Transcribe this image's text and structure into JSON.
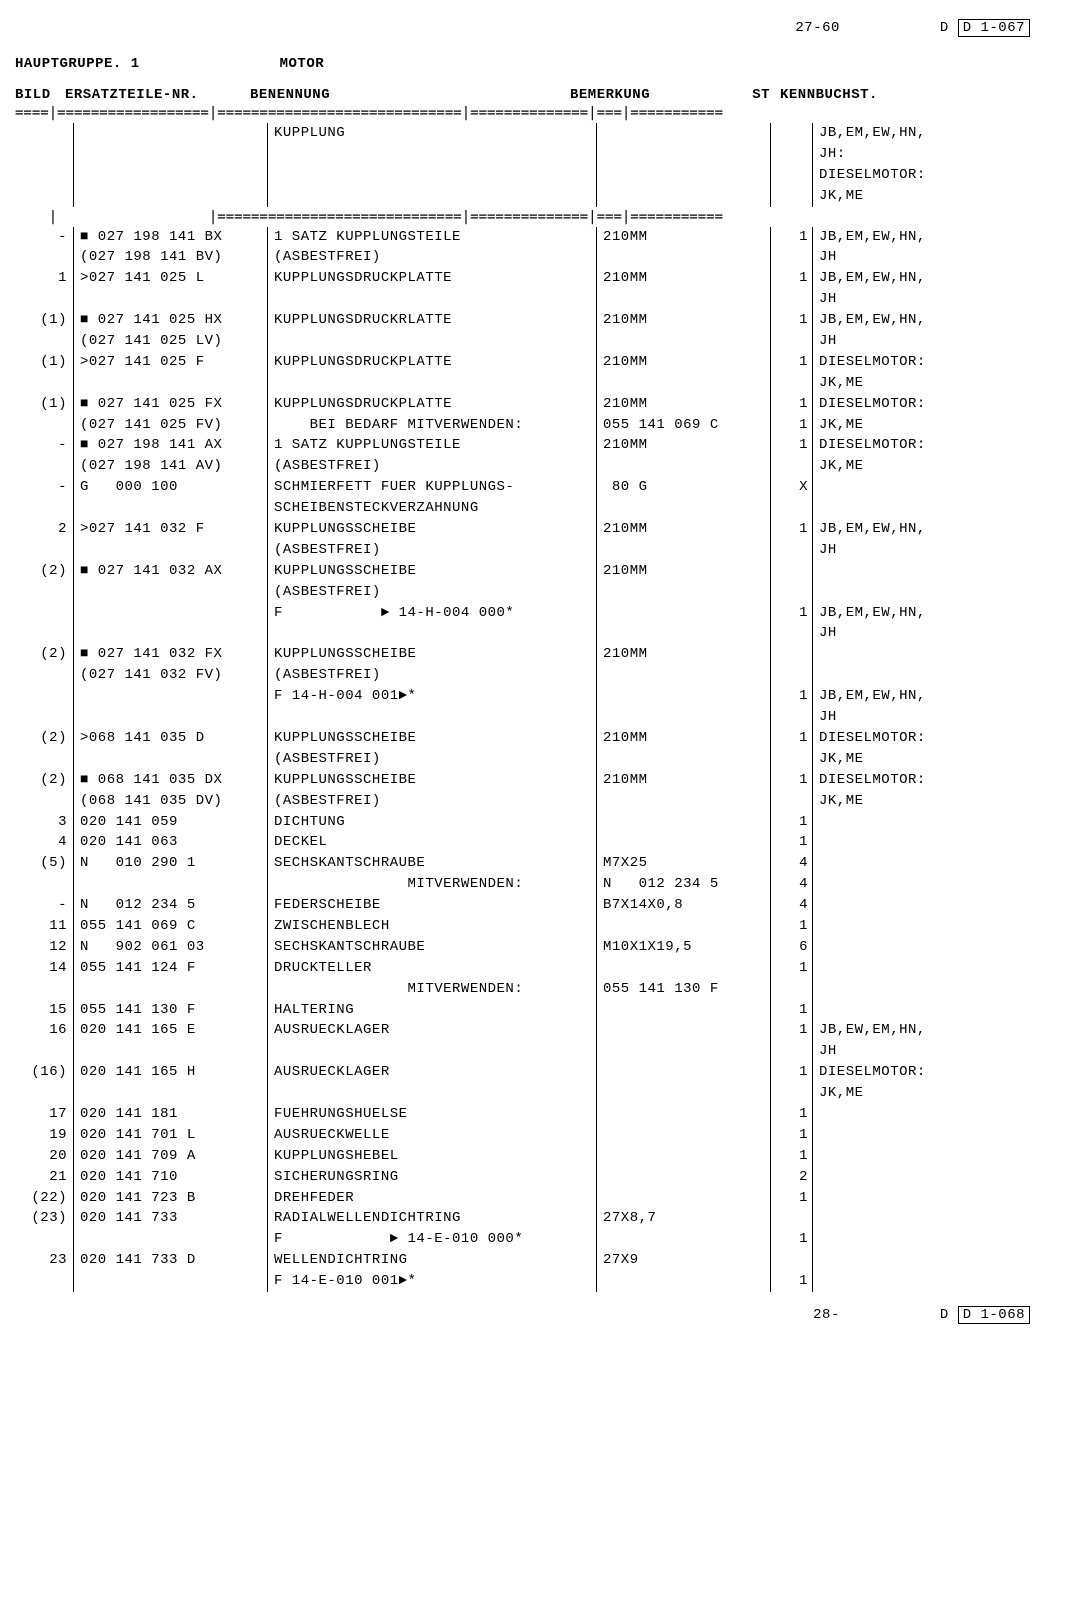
{
  "top": {
    "pageRange": "27-60",
    "ref": "D  1-067"
  },
  "header": {
    "hauptgruppe": "HAUPTGRUPPE.  1",
    "motor": "MOTOR"
  },
  "columns": {
    "bild": "BILD",
    "ersatz": "ERSATZTEILE-NR.",
    "benennung": "BENENNUNG",
    "bemerkung": "BEMERKUNG",
    "st": "ST",
    "kennbuchst": "KENNBUCHST."
  },
  "sectionHeader": {
    "benennung": "KUPPLUNG",
    "kennbuchst1": "JB,EM,EW,HN,",
    "kennbuchst2": "JH:",
    "kennbuchst3": "DIESELMOTOR:",
    "kennbuchst4": "JK,ME"
  },
  "rows": [
    {
      "bild": "-",
      "ersatz": "■ 027 198 141 BX",
      "benennung": "1 SATZ KUPPLUNGSTEILE",
      "bemerkung": "210MM",
      "st": "1",
      "kenn": "JB,EM,EW,HN,"
    },
    {
      "bild": "",
      "ersatz": "(027 198 141 BV)",
      "benennung": "(ASBESTFREI)",
      "bemerkung": "",
      "st": "",
      "kenn": "JH"
    },
    {
      "bild": "1",
      "ersatz": ">027 141 025 L",
      "benennung": "KUPPLUNGSDRUCKPLATTE",
      "bemerkung": "210MM",
      "st": "1",
      "kenn": "JB,EM,EW,HN,"
    },
    {
      "bild": "",
      "ersatz": "",
      "benennung": "",
      "bemerkung": "",
      "st": "",
      "kenn": "JH"
    },
    {
      "bild": "(1)",
      "ersatz": "■ 027 141 025 HX",
      "benennung": "KUPPLUNGSDRUCKRLATTE",
      "bemerkung": "210MM",
      "st": "1",
      "kenn": "JB,EM,EW,HN,"
    },
    {
      "bild": "",
      "ersatz": "(027 141 025 LV)",
      "benennung": "",
      "bemerkung": "",
      "st": "",
      "kenn": "JH"
    },
    {
      "bild": "(1)",
      "ersatz": ">027 141 025 F",
      "benennung": "KUPPLUNGSDRUCKPLATTE",
      "bemerkung": "210MM",
      "st": "1",
      "kenn": "DIESELMOTOR:"
    },
    {
      "bild": "",
      "ersatz": "",
      "benennung": "",
      "bemerkung": "",
      "st": "",
      "kenn": "JK,ME"
    },
    {
      "bild": "(1)",
      "ersatz": "■ 027 141 025 FX",
      "benennung": "KUPPLUNGSDRUCKPLATTE",
      "bemerkung": "210MM",
      "st": "1",
      "kenn": "DIESELMOTOR:"
    },
    {
      "bild": "",
      "ersatz": "(027 141 025 FV)",
      "benennung": "    BEI BEDARF MITVERWENDEN:",
      "bemerkung": "055 141 069 C",
      "st": "1",
      "kenn": "JK,ME"
    },
    {
      "bild": "-",
      "ersatz": "■ 027 198 141 AX",
      "benennung": "1 SATZ KUPPLUNGSTEILE",
      "bemerkung": "210MM",
      "st": "1",
      "kenn": "DIESELMOTOR:"
    },
    {
      "bild": "",
      "ersatz": "(027 198 141 AV)",
      "benennung": "(ASBESTFREI)",
      "bemerkung": "",
      "st": "",
      "kenn": "JK,ME"
    },
    {
      "bild": "-",
      "ersatz": "G   000 100",
      "benennung": "SCHMIERFETT FUER KUPPLUNGS-",
      "bemerkung": " 80 G",
      "st": "X",
      "kenn": ""
    },
    {
      "bild": "",
      "ersatz": "",
      "benennung": "SCHEIBENSTECKVERZAHNUNG",
      "bemerkung": "",
      "st": "",
      "kenn": ""
    },
    {
      "bild": "2",
      "ersatz": ">027 141 032 F",
      "benennung": "KUPPLUNGSSCHEIBE",
      "bemerkung": "210MM",
      "st": "1",
      "kenn": "JB,EM,EW,HN,"
    },
    {
      "bild": "",
      "ersatz": "",
      "benennung": "(ASBESTFREI)",
      "bemerkung": "",
      "st": "",
      "kenn": "JH"
    },
    {
      "bild": "(2)",
      "ersatz": "■ 027 141 032 AX",
      "benennung": "KUPPLUNGSSCHEIBE",
      "bemerkung": "210MM",
      "st": "",
      "kenn": ""
    },
    {
      "bild": "",
      "ersatz": "",
      "benennung": "(ASBESTFREI)",
      "bemerkung": "",
      "st": "",
      "kenn": ""
    },
    {
      "bild": "",
      "ersatz": "",
      "benennung": "F           ► 14-H-004 000*",
      "bemerkung": "",
      "st": "1",
      "kenn": "JB,EM,EW,HN,"
    },
    {
      "bild": "",
      "ersatz": "",
      "benennung": "",
      "bemerkung": "",
      "st": "",
      "kenn": "JH"
    },
    {
      "bild": "(2)",
      "ersatz": "■ 027 141 032 FX",
      "benennung": "KUPPLUNGSSCHEIBE",
      "bemerkung": "210MM",
      "st": "",
      "kenn": ""
    },
    {
      "bild": "",
      "ersatz": "(027 141 032 FV)",
      "benennung": "(ASBESTFREI)",
      "bemerkung": "",
      "st": "",
      "kenn": ""
    },
    {
      "bild": "",
      "ersatz": "",
      "benennung": "F 14-H-004 001►*",
      "bemerkung": "",
      "st": "1",
      "kenn": "JB,EM,EW,HN,"
    },
    {
      "bild": "",
      "ersatz": "",
      "benennung": "",
      "bemerkung": "",
      "st": "",
      "kenn": "JH"
    },
    {
      "bild": "(2)",
      "ersatz": ">068 141 035 D",
      "benennung": "KUPPLUNGSSCHEIBE",
      "bemerkung": "210MM",
      "st": "1",
      "kenn": "DIESELMOTOR:"
    },
    {
      "bild": "",
      "ersatz": "",
      "benennung": "(ASBESTFREI)",
      "bemerkung": "",
      "st": "",
      "kenn": "JK,ME"
    },
    {
      "bild": "(2)",
      "ersatz": "■ 068 141 035 DX",
      "benennung": "KUPPLUNGSSCHEIBE",
      "bemerkung": "210MM",
      "st": "1",
      "kenn": "DIESELMOTOR:"
    },
    {
      "bild": "",
      "ersatz": "(068 141 035 DV)",
      "benennung": "(ASBESTFREI)",
      "bemerkung": "",
      "st": "",
      "kenn": "JK,ME"
    },
    {
      "bild": "3",
      "ersatz": "020 141 059",
      "benennung": "DICHTUNG",
      "bemerkung": "",
      "st": "1",
      "kenn": ""
    },
    {
      "bild": "4",
      "ersatz": "020 141 063",
      "benennung": "DECKEL",
      "bemerkung": "",
      "st": "1",
      "kenn": ""
    },
    {
      "bild": "(5)",
      "ersatz": "N   010 290 1",
      "benennung": "SECHSKANTSCHRAUBE",
      "bemerkung": "M7X25",
      "st": "4",
      "kenn": ""
    },
    {
      "bild": "",
      "ersatz": "",
      "benennung": "               MITVERWENDEN:",
      "bemerkung": "N   012 234 5",
      "st": "4",
      "kenn": ""
    },
    {
      "bild": "-",
      "ersatz": "N   012 234 5",
      "benennung": "FEDERSCHEIBE",
      "bemerkung": "B7X14X0,8",
      "st": "4",
      "kenn": ""
    },
    {
      "bild": "11",
      "ersatz": "055 141 069 C",
      "benennung": "ZWISCHENBLECH",
      "bemerkung": "",
      "st": "1",
      "kenn": ""
    },
    {
      "bild": "12",
      "ersatz": "N   902 061 03",
      "benennung": "SECHSKANTSCHRAUBE",
      "bemerkung": "M10X1X19,5",
      "st": "6",
      "kenn": ""
    },
    {
      "bild": "14",
      "ersatz": "055 141 124 F",
      "benennung": "DRUCKTELLER",
      "bemerkung": "",
      "st": "1",
      "kenn": ""
    },
    {
      "bild": "",
      "ersatz": "",
      "benennung": "               MITVERWENDEN:",
      "bemerkung": "055 141 130 F",
      "st": "",
      "kenn": ""
    },
    {
      "bild": "15",
      "ersatz": "055 141 130 F",
      "benennung": "HALTERING",
      "bemerkung": "",
      "st": "1",
      "kenn": ""
    },
    {
      "bild": "16",
      "ersatz": "020 141 165 E",
      "benennung": "AUSRUECKLAGER",
      "bemerkung": "",
      "st": "1",
      "kenn": "JB,EW,EM,HN,"
    },
    {
      "bild": "",
      "ersatz": "",
      "benennung": "",
      "bemerkung": "",
      "st": "",
      "kenn": "JH"
    },
    {
      "bild": "(16)",
      "ersatz": "020 141 165 H",
      "benennung": "AUSRUECKLAGER",
      "bemerkung": "",
      "st": "1",
      "kenn": "DIESELMOTOR:"
    },
    {
      "bild": "",
      "ersatz": "",
      "benennung": "",
      "bemerkung": "",
      "st": "",
      "kenn": "JK,ME"
    },
    {
      "bild": "17",
      "ersatz": "020 141 181",
      "benennung": "FUEHRUNGSHUELSE",
      "bemerkung": "",
      "st": "1",
      "kenn": ""
    },
    {
      "bild": "19",
      "ersatz": "020 141 701 L",
      "benennung": "AUSRUECKWELLE",
      "bemerkung": "",
      "st": "1",
      "kenn": ""
    },
    {
      "bild": "20",
      "ersatz": "020 141 709 A",
      "benennung": "KUPPLUNGSHEBEL",
      "bemerkung": "",
      "st": "1",
      "kenn": ""
    },
    {
      "bild": "21",
      "ersatz": "020 141 710",
      "benennung": "SICHERUNGSRING",
      "bemerkung": "",
      "st": "2",
      "kenn": ""
    },
    {
      "bild": "(22)",
      "ersatz": "020 141 723 B",
      "benennung": "DREHFEDER",
      "bemerkung": "",
      "st": "1",
      "kenn": ""
    },
    {
      "bild": "(23)",
      "ersatz": "020 141 733",
      "benennung": "RADIALWELLENDICHTRING",
      "bemerkung": "27X8,7",
      "st": "",
      "kenn": ""
    },
    {
      "bild": "",
      "ersatz": "",
      "benennung": "F            ► 14-E-010 000*",
      "bemerkung": "",
      "st": "1",
      "kenn": ""
    },
    {
      "bild": "23",
      "ersatz": "020 141 733 D",
      "benennung": "WELLENDICHTRING",
      "bemerkung": "27X9",
      "st": "",
      "kenn": ""
    },
    {
      "bild": "",
      "ersatz": "",
      "benennung": "F 14-E-010 001►*",
      "bemerkung": "",
      "st": "1",
      "kenn": ""
    }
  ],
  "foot": {
    "page": "28-",
    "ref": "D  1-068"
  },
  "divider1": "====|==================|=============================|==============|===|===========",
  "divider2": "    |                  |=============================|==============|===|==========="
}
